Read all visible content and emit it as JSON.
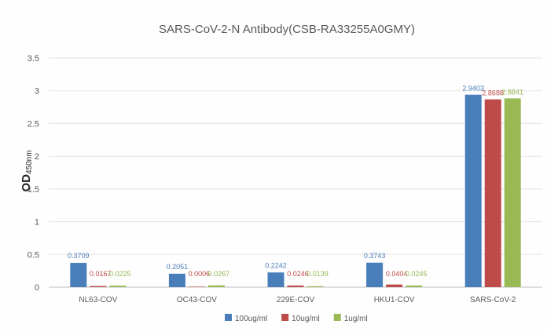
{
  "chart_data": {
    "type": "bar",
    "title": "SARS-CoV-2-N Antibody(CSB-RA33255A0GMY)",
    "xlabel": "",
    "ylabel": "OD450nm",
    "ylabel_main": "OD",
    "ylabel_sub": "450nm",
    "categories": [
      "NL63-COV",
      "OC43-COV",
      "229E-COV",
      "HKU1-COV",
      "SARS-CoV-2"
    ],
    "ylim": [
      0,
      3.5
    ],
    "yticks": [
      "0",
      "0.5",
      "1",
      "1.5",
      "2",
      "2.5",
      "3",
      "3.5"
    ],
    "grid": true,
    "legend_position": "bottom",
    "series": [
      {
        "name": "100ug/ml",
        "color": "#4a7ebb",
        "values": [
          0.3709,
          0.2051,
          0.2242,
          0.3743,
          2.9403
        ],
        "labels": [
          "0.3709",
          "0.2051",
          "0.2242",
          "0.3743",
          "2.9403"
        ]
      },
      {
        "name": "10ug/ml",
        "color": "#be4b48",
        "values": [
          0.0167,
          0.0006,
          0.0246,
          0.0404,
          2.8688
        ],
        "labels": [
          "0.0167",
          "0.0006",
          "0.0246",
          "0.0404",
          "2.8688"
        ]
      },
      {
        "name": "1ug/ml",
        "color": "#98b954",
        "values": [
          0.0225,
          0.0267,
          0.0139,
          0.0245,
          2.8841
        ],
        "labels": [
          "0.0225",
          "0.0267",
          "0.0139",
          "0.0245",
          "2.8841"
        ]
      }
    ]
  }
}
